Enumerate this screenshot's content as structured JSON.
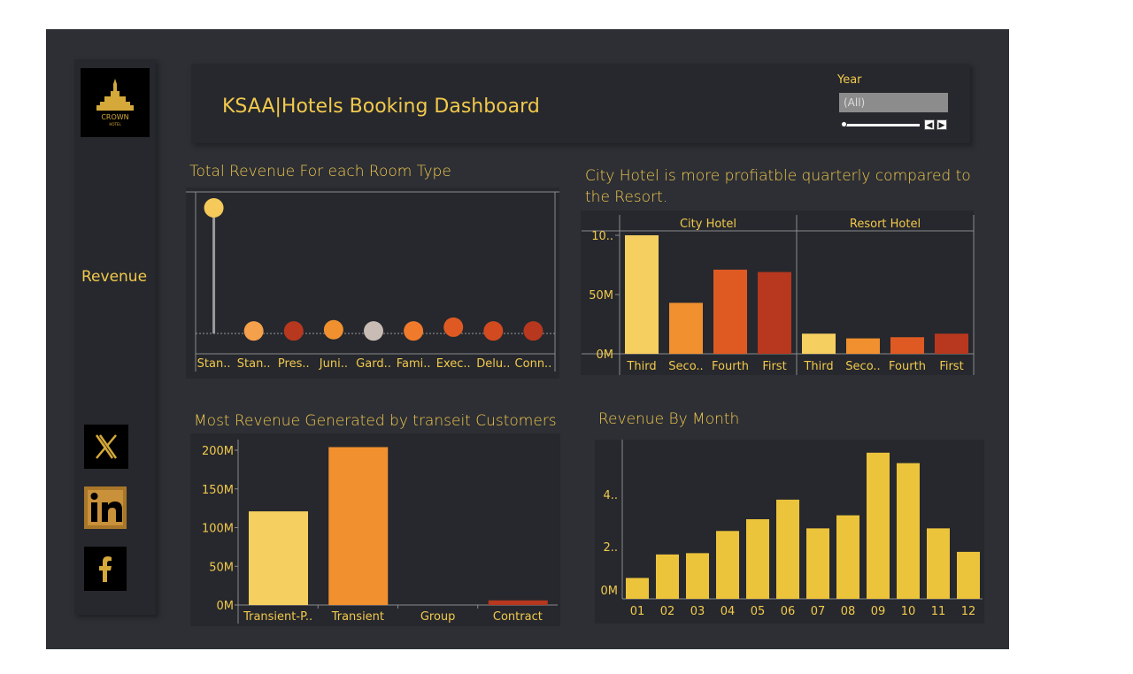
{
  "header": {
    "title": "KSAA|Hotels Booking Dashboard"
  },
  "filter": {
    "label": "Year",
    "value": "(All)"
  },
  "sidebar": {
    "nav_label": "Revenue",
    "social": [
      "x-icon",
      "linkedin-icon",
      "facebook-icon"
    ]
  },
  "colors": {
    "gold": "#f2c94c",
    "yellow": "#ecc43c",
    "light_orange": "#f5a04a",
    "orange": "#f0902f",
    "dark_orange": "#df5a22",
    "red": "#b7381e",
    "gray": "#c8bcb4"
  },
  "chart_data": [
    {
      "id": "room_type",
      "type": "lollipop",
      "title": "Total Revenue For each Room Type",
      "categories": [
        "Stan..",
        "Stan..",
        "Pres..",
        "Juni..",
        "Gard..",
        "Fami..",
        "Exec..",
        "Delu..",
        "Conn.."
      ],
      "values": [
        100,
        2,
        2,
        3,
        2,
        2,
        5,
        2,
        2
      ],
      "colors": [
        "#f5c95a",
        "#f5a04a",
        "#b7381e",
        "#f0902f",
        "#c8bcb4",
        "#f07a2b",
        "#df5a22",
        "#d24a1f",
        "#b7381e"
      ],
      "ylim": [
        0,
        100
      ]
    },
    {
      "id": "quarterly",
      "type": "bar",
      "title": "City Hotel is more profiatble quarterly compared to the Resort.",
      "panels": [
        {
          "name": "City Hotel",
          "categories": [
            "Third",
            "Seco..",
            "Fourth",
            "First"
          ],
          "values": [
            100,
            43,
            71,
            69
          ]
        },
        {
          "name": "Resort Hotel",
          "categories": [
            "Third",
            "Seco..",
            "Fourth",
            "First"
          ],
          "values": [
            17,
            13,
            14,
            17
          ]
        }
      ],
      "colors": [
        "#f5cf60",
        "#f0902f",
        "#df5a22",
        "#b7381e"
      ],
      "yticks": [
        "0M",
        "50M",
        "10.."
      ],
      "ylim": [
        0,
        100
      ]
    },
    {
      "id": "customer_type",
      "type": "bar",
      "title": "Most Revenue Generated by transeit Customers",
      "categories": [
        "Transient-P..",
        "Transient",
        "Group",
        "Contract"
      ],
      "values": [
        121,
        204,
        0,
        6
      ],
      "colors": [
        "#f5cf60",
        "#f0902f",
        "#b7381e",
        "#b7381e"
      ],
      "yticks": [
        "0M",
        "50M",
        "100M",
        "150M",
        "200M"
      ],
      "ylim": [
        0,
        210
      ]
    },
    {
      "id": "monthly",
      "type": "bar",
      "title": "Revenue By Month",
      "categories": [
        "01",
        "02",
        "03",
        "04",
        "05",
        "06",
        "07",
        "08",
        "09",
        "10",
        "11",
        "12"
      ],
      "values": [
        0.8,
        1.7,
        1.75,
        2.6,
        3.05,
        3.8,
        2.7,
        3.2,
        5.6,
        5.2,
        2.7,
        1.8
      ],
      "color": "#ecc43c",
      "yticks": [
        "0M",
        "2..",
        "4.."
      ],
      "ylim": [
        0,
        6
      ]
    }
  ]
}
